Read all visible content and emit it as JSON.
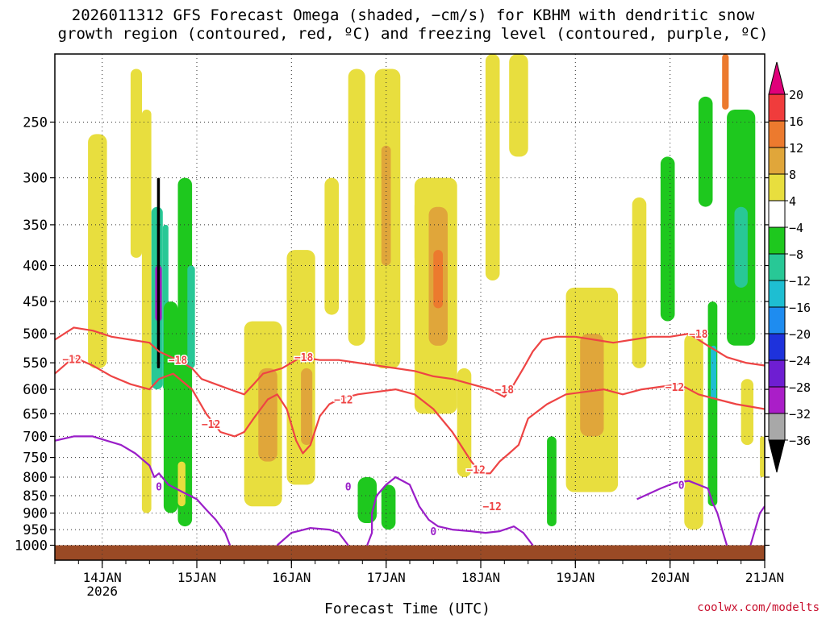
{
  "header": {
    "title_line1": "2026011312 GFS Forecast Omega (shaded, −cm/s) for KBHM with dendritic snow",
    "title_line2": "growth region (contoured, red, ºC) and freezing level (contoured, purple, ºC)"
  },
  "footer": {
    "credit": "coolwx.com/modelts"
  },
  "chart_data": {
    "type": "heatmap",
    "title": "2026011312 GFS Forecast Omega (shaded, −cm/s) for KBHM with dendritic snow growth region (contoured, red, ºC) and freezing level (contoured, purple, ºC)",
    "xlabel": "Forecast Time (UTC)",
    "ylabel": "",
    "x_unit": "days since 2026-01-13 12 UTC",
    "xlim": [
      0.0,
      7.5
    ],
    "ylim": [
      1050,
      200
    ],
    "y_scale": "log-pressure",
    "x_ticks": [
      {
        "label": "14JAN",
        "sublabel": "2026",
        "x": 0.5
      },
      {
        "label": "15JAN",
        "x": 1.5
      },
      {
        "label": "16JAN",
        "x": 2.5
      },
      {
        "label": "17JAN",
        "x": 3.5
      },
      {
        "label": "18JAN",
        "x": 4.5
      },
      {
        "label": "19JAN",
        "x": 5.5
      },
      {
        "label": "20JAN",
        "x": 6.5
      },
      {
        "label": "21JAN",
        "x": 7.5
      }
    ],
    "y_ticks": [
      250,
      300,
      350,
      400,
      450,
      500,
      550,
      600,
      650,
      700,
      750,
      800,
      850,
      900,
      950,
      1000
    ],
    "grid": true,
    "colorbar": {
      "labels": [
        "20",
        "16",
        "12",
        "8",
        "4",
        "−4",
        "−8",
        "−12",
        "−16",
        "−20",
        "−24",
        "−28",
        "−32",
        "−36"
      ],
      "bins": [
        {
          "range": ">20",
          "color": "#e0007a"
        },
        {
          "range": "16 to 20",
          "color": "#f03c3c"
        },
        {
          "range": "12 to 16",
          "color": "#ec7a2e"
        },
        {
          "range": "8 to 12",
          "color": "#e0a63a"
        },
        {
          "range": "4 to 8",
          "color": "#e8de3e"
        },
        {
          "range": "-4 to 4",
          "color": "#ffffff"
        },
        {
          "range": "-8 to -4",
          "color": "#1ec81e"
        },
        {
          "range": "-12 to -8",
          "color": "#28c896"
        },
        {
          "range": "-16 to -12",
          "color": "#1ebed2"
        },
        {
          "range": "-20 to -16",
          "color": "#1e8cf0"
        },
        {
          "range": "-24 to -20",
          "color": "#1e32dc"
        },
        {
          "range": "-28 to -24",
          "color": "#6e1ed2"
        },
        {
          "range": "-32 to -28",
          "color": "#aa1ec8"
        },
        {
          "range": "-36 to -32",
          "color": "#a8a8a8"
        },
        {
          "range": "<-36",
          "color": "#000000"
        }
      ]
    },
    "omega_regions": [
      {
        "x": [
          0.35,
          0.55
        ],
        "p": [
          260,
          560
        ],
        "value": 6
      },
      {
        "x": [
          0.8,
          0.92
        ],
        "p": [
          210,
          390
        ],
        "value": 6
      },
      {
        "x": [
          0.92,
          1.02
        ],
        "p": [
          240,
          900
        ],
        "value": 7
      },
      {
        "x": [
          1.02,
          1.14
        ],
        "p": [
          330,
          600
        ],
        "value": -12
      },
      {
        "x": [
          1.06,
          1.13
        ],
        "p": [
          400,
          480
        ],
        "value": -30
      },
      {
        "x": [
          1.08,
          1.11
        ],
        "p": [
          300,
          560
        ],
        "value": -40
      },
      {
        "x": [
          1.14,
          1.2
        ],
        "p": [
          350,
          600
        ],
        "value": -10
      },
      {
        "x": [
          1.15,
          1.3
        ],
        "p": [
          450,
          900
        ],
        "value": -6
      },
      {
        "x": [
          1.3,
          1.45
        ],
        "p": [
          300,
          940
        ],
        "value": -6
      },
      {
        "x": [
          1.4,
          1.48
        ],
        "p": [
          400,
          560
        ],
        "value": -12
      },
      {
        "x": [
          1.3,
          1.38
        ],
        "p": [
          760,
          880
        ],
        "value": 8
      },
      {
        "x": [
          2.0,
          2.4
        ],
        "p": [
          480,
          880
        ],
        "value": 6
      },
      {
        "x": [
          2.15,
          2.35
        ],
        "p": [
          560,
          760
        ],
        "value": 9
      },
      {
        "x": [
          2.45,
          2.75
        ],
        "p": [
          380,
          820
        ],
        "value": 6
      },
      {
        "x": [
          2.6,
          2.72
        ],
        "p": [
          560,
          720
        ],
        "value": 9
      },
      {
        "x": [
          2.85,
          3.0
        ],
        "p": [
          300,
          470
        ],
        "value": 5
      },
      {
        "x": [
          3.1,
          3.28
        ],
        "p": [
          210,
          520
        ],
        "value": 6
      },
      {
        "x": [
          3.38,
          3.65
        ],
        "p": [
          210,
          560
        ],
        "value": 7
      },
      {
        "x": [
          3.45,
          3.55
        ],
        "p": [
          270,
          400
        ],
        "value": 12
      },
      {
        "x": [
          3.8,
          4.0
        ],
        "p": [
          320,
          400
        ],
        "value": 5
      },
      {
        "x": [
          3.8,
          4.25
        ],
        "p": [
          300,
          650
        ],
        "value": 7
      },
      {
        "x": [
          3.95,
          4.15
        ],
        "p": [
          330,
          520
        ],
        "value": 12
      },
      {
        "x": [
          4.0,
          4.1
        ],
        "p": [
          380,
          460
        ],
        "value": 14
      },
      {
        "x": [
          4.25,
          4.4
        ],
        "p": [
          560,
          800
        ],
        "value": 5
      },
      {
        "x": [
          4.55,
          4.7
        ],
        "p": [
          200,
          420
        ],
        "value": 5
      },
      {
        "x": [
          4.8,
          5.0
        ],
        "p": [
          200,
          280
        ],
        "value": 7
      },
      {
        "x": [
          5.2,
          5.3
        ],
        "p": [
          700,
          940
        ],
        "value": -6
      },
      {
        "x": [
          3.2,
          3.4
        ],
        "p": [
          800,
          930
        ],
        "value": -6
      },
      {
        "x": [
          3.45,
          3.6
        ],
        "p": [
          820,
          950
        ],
        "value": -6
      },
      {
        "x": [
          5.4,
          5.95
        ],
        "p": [
          430,
          840
        ],
        "value": 6
      },
      {
        "x": [
          5.55,
          5.8
        ],
        "p": [
          500,
          700
        ],
        "value": 9
      },
      {
        "x": [
          6.1,
          6.25
        ],
        "p": [
          320,
          560
        ],
        "value": 5
      },
      {
        "x": [
          6.4,
          6.55
        ],
        "p": [
          280,
          480
        ],
        "value": -6
      },
      {
        "x": [
          6.8,
          6.95
        ],
        "p": [
          230,
          330
        ],
        "value": -6
      },
      {
        "x": [
          6.65,
          6.85
        ],
        "p": [
          500,
          950
        ],
        "value": 6
      },
      {
        "x": [
          6.9,
          7.0
        ],
        "p": [
          450,
          880
        ],
        "value": -8
      },
      {
        "x": [
          6.93,
          6.99
        ],
        "p": [
          520,
          620
        ],
        "value": -14
      },
      {
        "x": [
          7.1,
          7.4
        ],
        "p": [
          240,
          520
        ],
        "value": -8
      },
      {
        "x": [
          7.18,
          7.32
        ],
        "p": [
          330,
          430
        ],
        "value": -12
      },
      {
        "x": [
          7.25,
          7.38
        ],
        "p": [
          580,
          720
        ],
        "value": 8
      },
      {
        "x": [
          7.05,
          7.12
        ],
        "p": [
          200,
          240
        ],
        "value": 16
      },
      {
        "x": [
          7.45,
          7.5
        ],
        "p": [
          700,
          800
        ],
        "value": 6
      }
    ],
    "dgz_contours": [
      {
        "name": "−12 °C (lower)",
        "label": "−12",
        "color": "#ee4444",
        "points": [
          [
            0.0,
            570
          ],
          [
            0.2,
            540
          ],
          [
            0.4,
            555
          ],
          [
            0.6,
            575
          ],
          [
            0.8,
            590
          ],
          [
            1.0,
            600
          ],
          [
            1.1,
            580
          ],
          [
            1.25,
            570
          ],
          [
            1.45,
            600
          ],
          [
            1.6,
            650
          ],
          [
            1.75,
            690
          ],
          [
            1.9,
            700
          ],
          [
            2.0,
            690
          ],
          [
            2.1,
            660
          ],
          [
            2.25,
            620
          ],
          [
            2.35,
            610
          ],
          [
            2.45,
            640
          ],
          [
            2.55,
            710
          ],
          [
            2.62,
            740
          ],
          [
            2.7,
            720
          ],
          [
            2.8,
            655
          ],
          [
            2.9,
            630
          ],
          [
            3.0,
            620
          ],
          [
            3.2,
            610
          ],
          [
            3.4,
            605
          ],
          [
            3.6,
            600
          ],
          [
            3.8,
            610
          ],
          [
            4.0,
            640
          ],
          [
            4.2,
            690
          ],
          [
            4.4,
            760
          ],
          [
            4.5,
            790
          ],
          [
            4.6,
            790
          ],
          [
            4.7,
            760
          ],
          [
            4.8,
            740
          ],
          [
            4.9,
            720
          ],
          [
            5.0,
            660
          ],
          [
            5.2,
            630
          ],
          [
            5.4,
            610
          ],
          [
            5.6,
            605
          ],
          [
            5.8,
            600
          ],
          [
            6.0,
            610
          ],
          [
            6.2,
            600
          ],
          [
            6.4,
            595
          ],
          [
            6.6,
            590
          ],
          [
            6.8,
            610
          ],
          [
            7.0,
            620
          ],
          [
            7.2,
            630
          ],
          [
            7.5,
            640
          ]
        ]
      },
      {
        "name": "−18 °C (upper)",
        "label": "−18",
        "color": "#ee4444",
        "points": [
          [
            0.0,
            510
          ],
          [
            0.2,
            490
          ],
          [
            0.4,
            495
          ],
          [
            0.6,
            505
          ],
          [
            0.8,
            510
          ],
          [
            1.0,
            515
          ],
          [
            1.1,
            530
          ],
          [
            1.3,
            545
          ],
          [
            1.45,
            560
          ],
          [
            1.55,
            580
          ],
          [
            1.7,
            590
          ],
          [
            1.85,
            600
          ],
          [
            2.0,
            610
          ],
          [
            2.1,
            590
          ],
          [
            2.2,
            570
          ],
          [
            2.4,
            560
          ],
          [
            2.6,
            540
          ],
          [
            2.8,
            545
          ],
          [
            3.0,
            545
          ],
          [
            3.2,
            550
          ],
          [
            3.4,
            555
          ],
          [
            3.6,
            560
          ],
          [
            3.8,
            565
          ],
          [
            4.0,
            575
          ],
          [
            4.2,
            580
          ],
          [
            4.4,
            590
          ],
          [
            4.6,
            600
          ],
          [
            4.75,
            615
          ],
          [
            4.85,
            590
          ],
          [
            4.95,
            560
          ],
          [
            5.05,
            530
          ],
          [
            5.15,
            510
          ],
          [
            5.3,
            505
          ],
          [
            5.5,
            505
          ],
          [
            5.7,
            510
          ],
          [
            5.9,
            515
          ],
          [
            6.1,
            510
          ],
          [
            6.3,
            505
          ],
          [
            6.5,
            505
          ],
          [
            6.7,
            500
          ],
          [
            6.9,
            520
          ],
          [
            7.1,
            540
          ],
          [
            7.3,
            550
          ],
          [
            7.5,
            555
          ]
        ]
      }
    ],
    "freezing_level": {
      "name": "0 °C",
      "label": "0",
      "color": "#9a1ec8",
      "points": [
        [
          0.0,
          710
        ],
        [
          0.2,
          700
        ],
        [
          0.4,
          700
        ],
        [
          0.55,
          710
        ],
        [
          0.7,
          720
        ],
        [
          0.85,
          740
        ],
        [
          1.0,
          770
        ],
        [
          1.05,
          800
        ],
        [
          1.1,
          790
        ],
        [
          1.2,
          820
        ],
        [
          1.35,
          840
        ],
        [
          1.5,
          860
        ],
        [
          1.6,
          890
        ],
        [
          1.7,
          920
        ],
        [
          1.8,
          960
        ],
        [
          1.85,
          1000
        ]
      ]
    },
    "freezing_level_segments": [
      {
        "label": "0",
        "points": [
          [
            2.35,
            1000
          ],
          [
            2.5,
            960
          ],
          [
            2.7,
            945
          ],
          [
            2.9,
            950
          ],
          [
            3.0,
            960
          ],
          [
            3.1,
            1000
          ]
        ]
      },
      {
        "label": "0",
        "points": [
          [
            3.3,
            1000
          ],
          [
            3.35,
            960
          ],
          [
            3.35,
            900
          ],
          [
            3.4,
            850
          ],
          [
            3.5,
            820
          ],
          [
            3.6,
            800
          ],
          [
            3.75,
            820
          ],
          [
            3.8,
            850
          ],
          [
            3.85,
            880
          ],
          [
            3.95,
            920
          ],
          [
            4.05,
            940
          ],
          [
            4.2,
            950
          ],
          [
            4.4,
            955
          ],
          [
            4.55,
            960
          ],
          [
            4.7,
            955
          ],
          [
            4.85,
            940
          ],
          [
            4.95,
            960
          ],
          [
            5.05,
            1000
          ]
        ]
      },
      {
        "label": "0",
        "points": [
          [
            6.15,
            860
          ],
          [
            6.4,
            830
          ],
          [
            6.55,
            815
          ],
          [
            6.7,
            810
          ],
          [
            6.9,
            830
          ],
          [
            6.95,
            870
          ],
          [
            7.0,
            900
          ],
          [
            7.05,
            950
          ],
          [
            7.1,
            1000
          ]
        ]
      },
      {
        "label": "0",
        "points": [
          [
            7.35,
            1000
          ],
          [
            7.45,
            900
          ],
          [
            7.5,
            880
          ]
        ]
      }
    ],
    "surface": {
      "p_top": 1000,
      "color": "#9a4a25"
    }
  }
}
